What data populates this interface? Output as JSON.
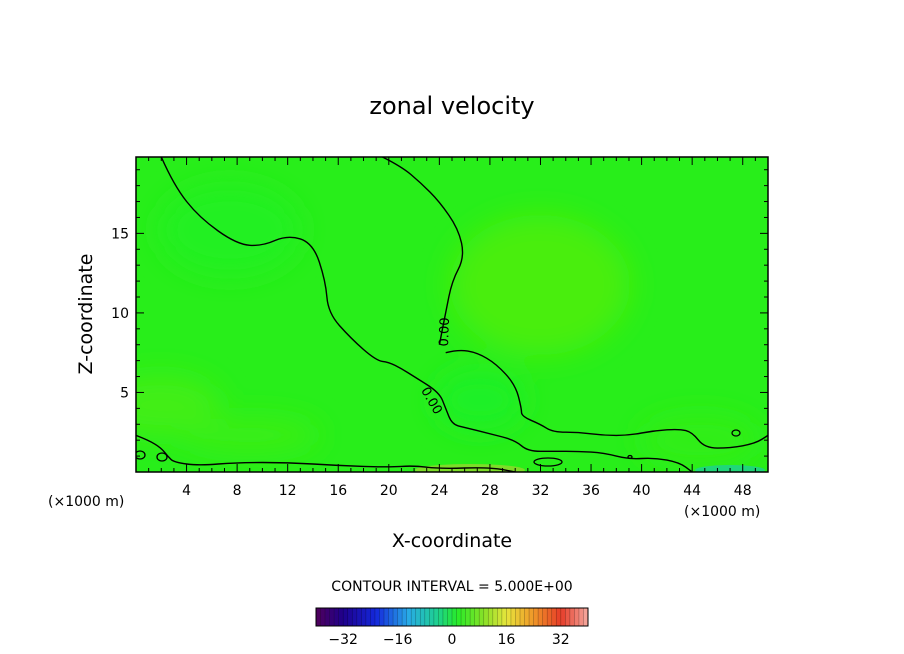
{
  "chart_data": {
    "type": "heatmap",
    "title": "zonal velocity",
    "xlabel": "X-coordinate",
    "ylabel": "Z-coordinate",
    "x_unit_left": "(×1000 m)",
    "x_unit_right": "(×1000 m)",
    "xlim": [
      0,
      50
    ],
    "ylim": [
      0,
      19.8
    ],
    "xticks": [
      4,
      8,
      12,
      16,
      20,
      24,
      28,
      32,
      36,
      40,
      44,
      48
    ],
    "yticks": [
      5,
      10,
      15
    ],
    "contour_label": "0.00",
    "contour_interval_text": "CONTOUR INTERVAL = 5.000E+00",
    "colorbar": {
      "range": [
        -40,
        40
      ],
      "ticks": [
        -32,
        -16,
        0,
        16,
        32
      ],
      "tick_labels": [
        "−32",
        "−16",
        "0",
        "16",
        "32"
      ]
    },
    "zero_contours": [
      [
        [
          2,
          19.8
        ],
        [
          3,
          18
        ],
        [
          5,
          16
        ],
        [
          8,
          14.3
        ],
        [
          10,
          14.2
        ],
        [
          12,
          14.9
        ],
        [
          14,
          14.4
        ],
        [
          15,
          12
        ],
        [
          15.2,
          10
        ],
        [
          17,
          8.4
        ],
        [
          19,
          7
        ],
        [
          20,
          6.9
        ],
        [
          21,
          6.5
        ],
        [
          22,
          6
        ],
        [
          24,
          5
        ],
        [
          24.5,
          4
        ],
        [
          25,
          3
        ],
        [
          26,
          2.8
        ],
        [
          28,
          2.4
        ],
        [
          30,
          2.0
        ],
        [
          31,
          1.3
        ],
        [
          33,
          1.3
        ],
        [
          35,
          1.3
        ],
        [
          37,
          1.2
        ],
        [
          39,
          0.8
        ],
        [
          41,
          0.9
        ],
        [
          43,
          0.6
        ],
        [
          44,
          0
        ]
      ],
      [
        [
          19.5,
          19.8
        ],
        [
          21,
          19.2
        ],
        [
          22.5,
          18.2
        ],
        [
          24,
          17.0
        ],
        [
          25.5,
          15.3
        ],
        [
          26,
          13.5
        ],
        [
          25,
          12
        ],
        [
          24.5,
          10
        ],
        [
          24,
          8
        ]
      ],
      [
        [
          24.5,
          7.5
        ],
        [
          25.5,
          7.7
        ],
        [
          27,
          7.5
        ],
        [
          28.5,
          6.8
        ],
        [
          30,
          5.5
        ],
        [
          30.5,
          4
        ],
        [
          30.5,
          3.5
        ],
        [
          32,
          3
        ],
        [
          33,
          2.5
        ],
        [
          35,
          2.5
        ],
        [
          37,
          2.3
        ],
        [
          39,
          2.3
        ],
        [
          41,
          2.6
        ],
        [
          43,
          2.7
        ],
        [
          44,
          2.5
        ],
        [
          45,
          1.5
        ],
        [
          47,
          1.5
        ],
        [
          49,
          1.8
        ],
        [
          50,
          2.3
        ]
      ],
      [
        [
          0,
          2.3
        ],
        [
          1,
          2.0
        ],
        [
          2,
          1.5
        ],
        [
          2.5,
          1.0
        ],
        [
          3,
          0.6
        ],
        [
          5,
          0.4
        ],
        [
          8,
          0.6
        ],
        [
          12,
          0.6
        ],
        [
          16,
          0.4
        ],
        [
          20,
          0.3
        ],
        [
          22,
          0.4
        ],
        [
          24,
          0.2
        ],
        [
          28,
          0.3
        ],
        [
          30,
          0
        ]
      ]
    ]
  }
}
